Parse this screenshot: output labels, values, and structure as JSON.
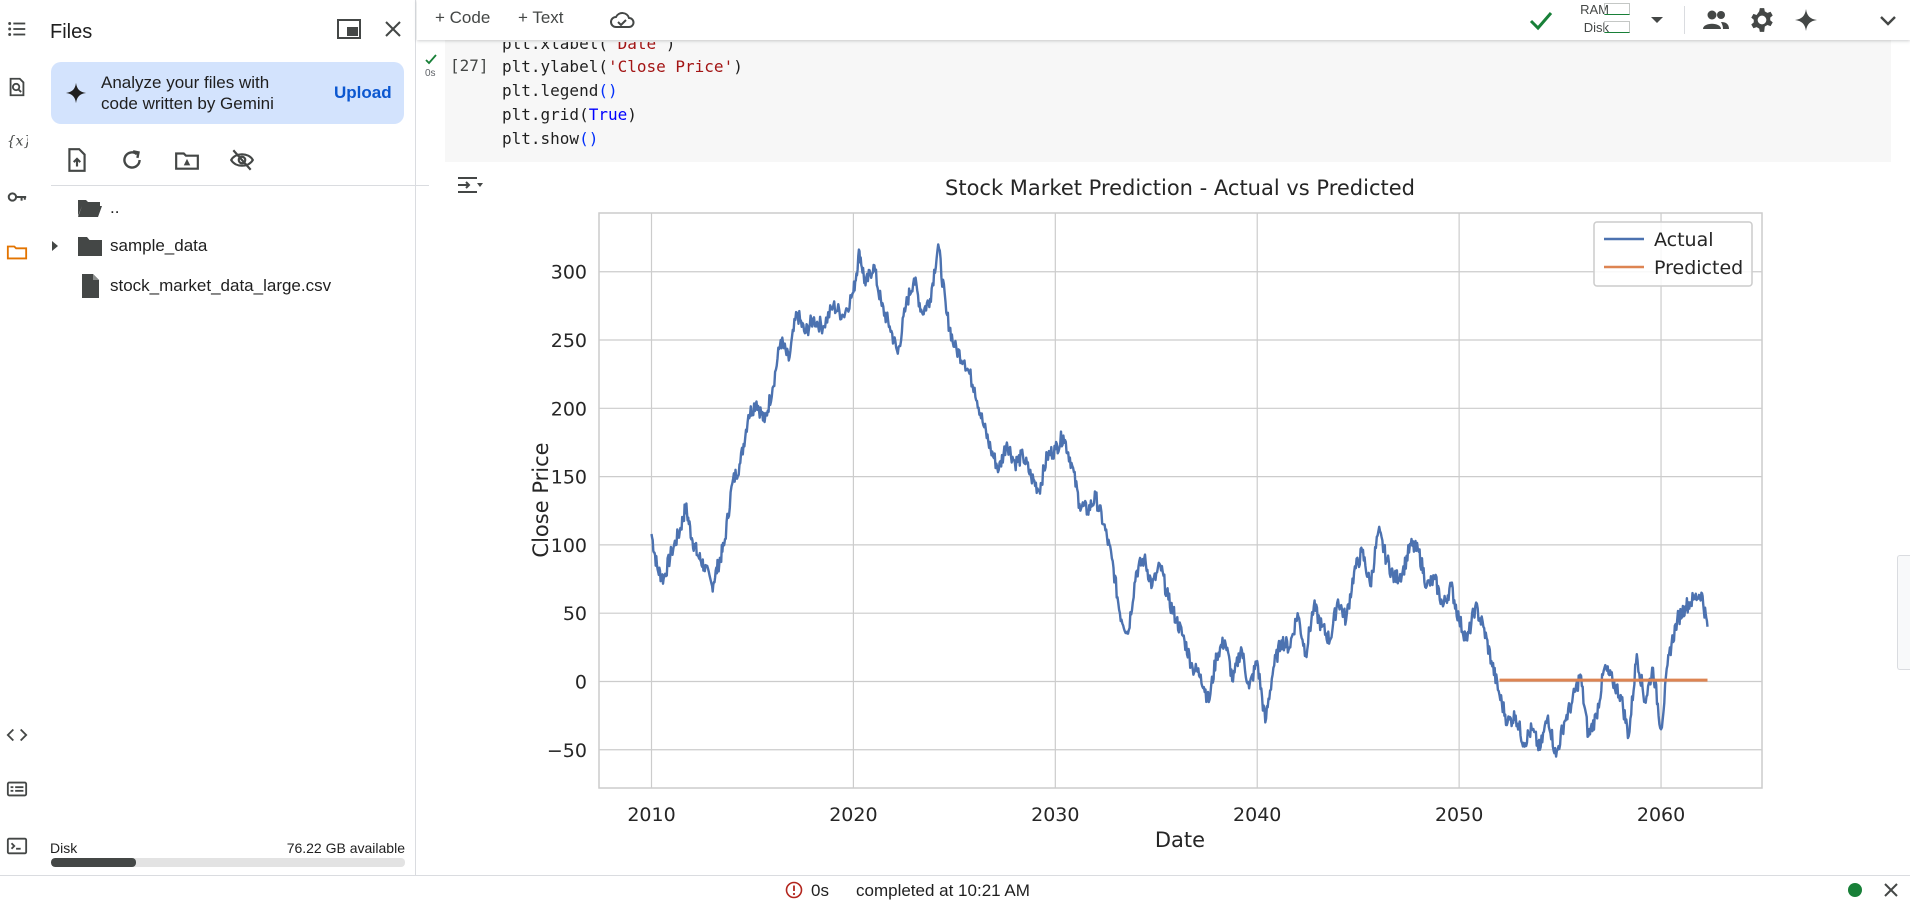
{
  "rail": {
    "items": [
      "table-of-contents-icon",
      "find-icon",
      "variables-icon",
      "secrets-key-icon",
      "folder-icon",
      "code-snippets-icon",
      "command-palette-icon",
      "terminal-icon"
    ],
    "active_color": "#e37400"
  },
  "files_panel": {
    "title": "Files",
    "gemini_card": {
      "text": "Analyze your files with code written by Gemini",
      "action": "Upload"
    },
    "tree": [
      {
        "name": "..",
        "type": "folder-up"
      },
      {
        "name": "sample_data",
        "type": "folder"
      },
      {
        "name": "stock_market_data_large.csv",
        "type": "file"
      }
    ],
    "disk": {
      "label": "Disk",
      "available": "76.22 GB available",
      "used_fraction": 0.24
    }
  },
  "toolbar": {
    "add_code": "+ Code",
    "add_text": "+ Text",
    "ram_label": "RAM",
    "disk_label": "Disk"
  },
  "cell": {
    "exec_count": "[27]",
    "run_time": "0s",
    "lines": [
      {
        "pre": "plt.xlabel(",
        "str": "'Date'",
        "post": ")"
      },
      {
        "pre": "plt.ylabel(",
        "str": "'Close Price'",
        "post": ")"
      },
      {
        "pre": "plt.legend",
        "par": "()",
        "post": ""
      },
      {
        "pre": "plt.grid(",
        "kw": "True",
        "post": ")"
      },
      {
        "pre": "plt.show",
        "par": "()",
        "post": ""
      }
    ]
  },
  "status": {
    "time": "0s",
    "message": "completed at 10:21 AM"
  },
  "chart_data": {
    "type": "line",
    "title": "Stock Market Prediction - Actual vs Predicted",
    "xlabel": "Date",
    "ylabel": "Close Price",
    "xlim": [
      2007.4,
      2065.0
    ],
    "ylim": [
      -78,
      343
    ],
    "xticks": [
      2010,
      2020,
      2030,
      2040,
      2050,
      2060
    ],
    "yticks": [
      -50,
      0,
      50,
      100,
      150,
      200,
      250,
      300
    ],
    "grid": true,
    "legend": "top-right",
    "series": [
      {
        "name": "Actual",
        "color": "#4c72b0",
        "x": [
          2010.0,
          2010.3,
          2010.6,
          2011.0,
          2011.4,
          2011.7,
          2012.0,
          2012.3,
          2012.6,
          2013.0,
          2013.3,
          2013.6,
          2014.0,
          2014.4,
          2014.8,
          2015.2,
          2015.6,
          2016.0,
          2016.4,
          2016.8,
          2017.2,
          2017.6,
          2018.0,
          2018.5,
          2019.0,
          2019.5,
          2020.0,
          2020.3,
          2020.6,
          2021.0,
          2021.4,
          2021.8,
          2022.2,
          2022.6,
          2023.0,
          2023.4,
          2023.8,
          2024.2,
          2024.6,
          2025.0,
          2025.5,
          2026.0,
          2026.4,
          2026.8,
          2027.2,
          2027.6,
          2028.0,
          2028.4,
          2028.8,
          2029.2,
          2029.6,
          2030.0,
          2030.4,
          2030.8,
          2031.2,
          2031.6,
          2032.0,
          2032.4,
          2032.8,
          2033.2,
          2033.6,
          2034.0,
          2034.4,
          2034.8,
          2035.2,
          2035.6,
          2036.0,
          2036.4,
          2036.8,
          2037.2,
          2037.6,
          2038.0,
          2038.4,
          2038.8,
          2039.2,
          2039.6,
          2040.0,
          2040.4,
          2040.8,
          2041.2,
          2041.6,
          2042.0,
          2042.4,
          2042.8,
          2043.2,
          2043.6,
          2044.0,
          2044.4,
          2044.8,
          2045.2,
          2045.6,
          2046.0,
          2046.4,
          2046.8,
          2047.2,
          2047.6,
          2048.0,
          2048.4,
          2048.8,
          2049.2,
          2049.6,
          2050.0,
          2050.4,
          2050.8,
          2051.2,
          2051.6,
          2052.0,
          2052.4,
          2052.8,
          2053.2,
          2053.6,
          2054.0,
          2054.4,
          2054.8,
          2055.2,
          2055.6,
          2056.0,
          2056.4,
          2056.8,
          2057.2,
          2057.6,
          2058.0,
          2058.4,
          2058.8,
          2059.2,
          2059.6,
          2060.0,
          2060.4,
          2060.8,
          2061.2,
          2061.6,
          2062.0,
          2062.3
        ],
        "y": [
          108,
          82,
          75,
          95,
          110,
          128,
          105,
          92,
          85,
          70,
          85,
          100,
          145,
          160,
          195,
          205,
          190,
          215,
          250,
          235,
          270,
          255,
          265,
          260,
          275,
          268,
          285,
          315,
          290,
          305,
          275,
          260,
          240,
          275,
          295,
          270,
          280,
          320,
          270,
          245,
          235,
          215,
          190,
          170,
          155,
          175,
          160,
          165,
          150,
          140,
          165,
          170,
          180,
          160,
          130,
          125,
          135,
          115,
          90,
          50,
          35,
          80,
          90,
          70,
          85,
          60,
          45,
          30,
          10,
          5,
          -15,
          20,
          30,
          0,
          25,
          -5,
          15,
          -30,
          10,
          30,
          25,
          50,
          20,
          55,
          40,
          30,
          60,
          45,
          80,
          95,
          70,
          110,
          90,
          75,
          80,
          100,
          95,
          70,
          75,
          55,
          70,
          45,
          30,
          55,
          40,
          15,
          -10,
          -30,
          -25,
          -45,
          -35,
          -50,
          -25,
          -55,
          -30,
          -15,
          5,
          -40,
          -25,
          10,
          0,
          -10,
          -40,
          20,
          -15,
          10,
          -35,
          20,
          45,
          55,
          60,
          65,
          40
        ]
      },
      {
        "name": "Predicted",
        "color": "#dd8452",
        "x": [
          2052.0,
          2062.3
        ],
        "y": [
          1,
          1
        ]
      }
    ]
  }
}
